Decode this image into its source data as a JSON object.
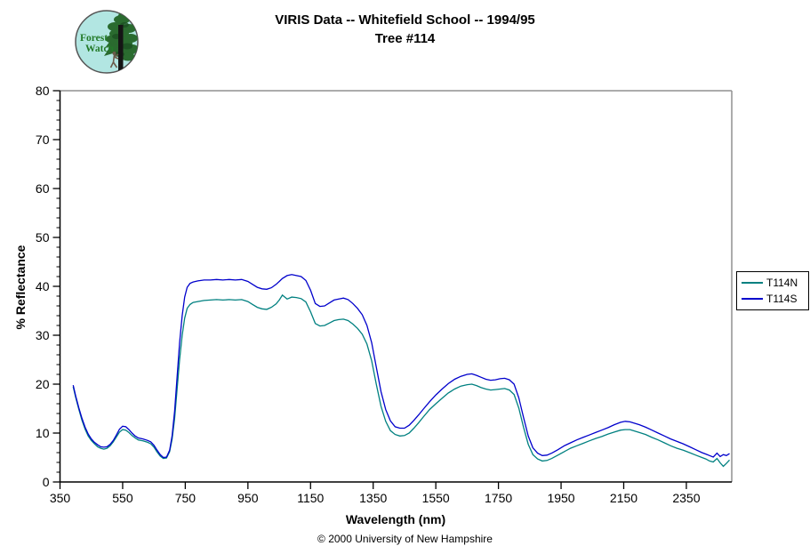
{
  "header": {
    "title_line1": "VIRIS Data -- Whitefield School -- 1994/95",
    "title_line2": "Tree #114"
  },
  "logo": {
    "text_line1": "Forest",
    "text_line2": "Watch",
    "bg_color": "#B2E6E2",
    "tree_color": "#2A6B2F",
    "tree_dark_color": "#1D5223",
    "trunk_color": "#151515",
    "person_color": "#6B5B4B",
    "text_color": "#237A28",
    "ring_color": "#555555"
  },
  "legend": {
    "items": [
      {
        "label": "T114N",
        "color": "#008080"
      },
      {
        "label": "T114S",
        "color": "#0000CC"
      }
    ]
  },
  "footer": {
    "copyright": "© 2000 University of New Hampshire"
  },
  "chart_data": {
    "type": "line",
    "title": "VIRIS Data -- Whitefield School -- 1994/95 / Tree #114",
    "xlabel": "Wavelength (nm)",
    "ylabel": "% Reflectance",
    "xlim": [
      350,
      2495
    ],
    "ylim": [
      0,
      80
    ],
    "x_ticks": [
      350,
      550,
      750,
      950,
      1150,
      1350,
      1550,
      1750,
      1950,
      2150,
      2350
    ],
    "y_ticks": [
      0,
      10,
      20,
      30,
      40,
      50,
      60,
      70,
      80
    ],
    "y_minor_step": 2,
    "grid": false,
    "legend_position": "right",
    "axis_color": "#000000",
    "frame_color": "#909090",
    "x": [
      392,
      400,
      410,
      420,
      430,
      440,
      450,
      460,
      470,
      480,
      490,
      500,
      510,
      520,
      530,
      540,
      550,
      560,
      570,
      580,
      590,
      600,
      615,
      630,
      640,
      650,
      660,
      670,
      680,
      690,
      700,
      708,
      716,
      724,
      732,
      740,
      748,
      756,
      765,
      775,
      790,
      810,
      830,
      850,
      870,
      890,
      910,
      930,
      950,
      965,
      980,
      995,
      1010,
      1025,
      1040,
      1050,
      1060,
      1075,
      1090,
      1105,
      1120,
      1135,
      1150,
      1165,
      1180,
      1195,
      1210,
      1225,
      1240,
      1255,
      1270,
      1285,
      1300,
      1315,
      1330,
      1345,
      1360,
      1375,
      1390,
      1405,
      1420,
      1435,
      1450,
      1465,
      1480,
      1495,
      1510,
      1530,
      1550,
      1570,
      1590,
      1610,
      1630,
      1650,
      1665,
      1680,
      1695,
      1710,
      1725,
      1740,
      1755,
      1770,
      1785,
      1800,
      1815,
      1830,
      1845,
      1860,
      1875,
      1890,
      1905,
      1920,
      1940,
      1960,
      1980,
      2000,
      2020,
      2040,
      2060,
      2080,
      2100,
      2120,
      2140,
      2155,
      2170,
      2185,
      2200,
      2220,
      2240,
      2260,
      2280,
      2300,
      2320,
      2340,
      2360,
      2380,
      2400,
      2412,
      2424,
      2436,
      2448,
      2458,
      2468,
      2478,
      2488
    ],
    "series": [
      {
        "name": "T114N",
        "color": "#008080",
        "values": [
          19.5,
          17.3,
          14.9,
          12.6,
          10.8,
          9.4,
          8.5,
          7.8,
          7.2,
          6.9,
          6.7,
          6.9,
          7.4,
          8.2,
          9.2,
          10.2,
          10.7,
          10.6,
          10.1,
          9.5,
          9.0,
          8.6,
          8.4,
          8.1,
          7.8,
          7.1,
          6.1,
          5.3,
          4.8,
          4.9,
          6.2,
          8.8,
          13.0,
          19.0,
          25.0,
          30.0,
          33.5,
          35.5,
          36.3,
          36.7,
          36.9,
          37.1,
          37.2,
          37.3,
          37.2,
          37.3,
          37.2,
          37.3,
          36.9,
          36.3,
          35.7,
          35.4,
          35.3,
          35.7,
          36.4,
          37.2,
          38.2,
          37.4,
          37.8,
          37.7,
          37.5,
          36.8,
          34.8,
          32.4,
          31.9,
          32.0,
          32.5,
          33.0,
          33.2,
          33.3,
          33.0,
          32.3,
          31.4,
          30.2,
          28.2,
          24.8,
          20.0,
          15.5,
          12.4,
          10.5,
          9.7,
          9.4,
          9.5,
          10.0,
          11.0,
          12.1,
          13.3,
          14.8,
          16.0,
          17.1,
          18.2,
          19.0,
          19.6,
          19.9,
          20.0,
          19.7,
          19.3,
          19.0,
          18.8,
          18.9,
          19.0,
          19.1,
          18.8,
          17.9,
          15.1,
          11.2,
          7.7,
          5.6,
          4.7,
          4.3,
          4.4,
          4.8,
          5.5,
          6.2,
          6.9,
          7.4,
          7.9,
          8.4,
          8.9,
          9.3,
          9.8,
          10.2,
          10.6,
          10.7,
          10.7,
          10.4,
          10.1,
          9.7,
          9.1,
          8.6,
          8.0,
          7.4,
          6.9,
          6.5,
          6.0,
          5.5,
          5.0,
          4.7,
          4.3,
          4.1,
          4.8,
          3.9,
          3.2,
          3.8,
          4.5
        ]
      },
      {
        "name": "T114S",
        "color": "#0000CC",
        "values": [
          19.8,
          17.6,
          15.2,
          13.0,
          11.2,
          9.8,
          8.8,
          8.1,
          7.6,
          7.2,
          7.1,
          7.2,
          7.7,
          8.5,
          9.6,
          10.8,
          11.4,
          11.3,
          10.7,
          10.0,
          9.4,
          9.0,
          8.8,
          8.5,
          8.2,
          7.5,
          6.5,
          5.6,
          5.0,
          5.1,
          6.5,
          9.5,
          14.5,
          21.5,
          28.5,
          34.0,
          37.8,
          39.8,
          40.6,
          40.9,
          41.1,
          41.3,
          41.3,
          41.4,
          41.3,
          41.4,
          41.3,
          41.4,
          41.0,
          40.4,
          39.8,
          39.5,
          39.4,
          39.7,
          40.4,
          41.0,
          41.6,
          42.2,
          42.4,
          42.2,
          42.0,
          41.2,
          39.2,
          36.5,
          35.9,
          36.0,
          36.6,
          37.2,
          37.4,
          37.6,
          37.3,
          36.5,
          35.5,
          34.2,
          32.0,
          28.5,
          23.5,
          18.5,
          14.8,
          12.5,
          11.3,
          11.0,
          11.0,
          11.6,
          12.6,
          13.7,
          14.9,
          16.4,
          17.8,
          19.0,
          20.1,
          21.0,
          21.6,
          22.0,
          22.1,
          21.8,
          21.4,
          21.0,
          20.8,
          20.9,
          21.1,
          21.2,
          20.9,
          20.0,
          17.2,
          13.2,
          9.4,
          7.0,
          5.9,
          5.4,
          5.5,
          5.9,
          6.6,
          7.4,
          8.0,
          8.6,
          9.1,
          9.6,
          10.1,
          10.6,
          11.1,
          11.7,
          12.2,
          12.4,
          12.3,
          12.0,
          11.7,
          11.2,
          10.6,
          10.0,
          9.4,
          8.8,
          8.3,
          7.8,
          7.2,
          6.6,
          6.0,
          5.7,
          5.4,
          5.1,
          5.9,
          5.2,
          5.6,
          5.4,
          5.8
        ]
      }
    ]
  }
}
